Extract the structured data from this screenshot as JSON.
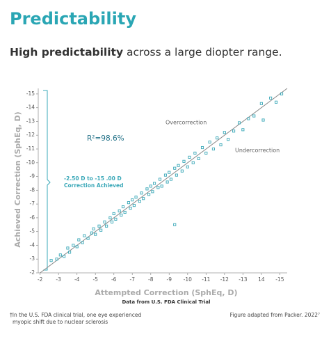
{
  "chart_data": {
    "type": "scatter",
    "title": "Predictability",
    "subtitle_bold": "High predictability",
    "subtitle": "across a large diopter range.",
    "annotation_r2": "R²=98.6%",
    "annotation_over": "Overcorrection",
    "annotation_under": "Undercorrection",
    "bracket_label": [
      "-2.50 D to -15 .00 D",
      "Correction Achieved"
    ],
    "x_label": "Attempted Correction (SphEq, D)",
    "source": "Data from U.S. FDA Clinical Trial",
    "y_label": "Achieved Correction (SphEq, D)",
    "footnote": [
      "†In the U.S. FDA clinical trial, one eye experienced",
      "myopic shift due to nuclear sclerosis"
    ],
    "credit": "Figure adapted from Packer. 2022⁷",
    "color": "#3aa8b8",
    "x": [
      -2.6,
      -2.9,
      -3.1,
      -3.3,
      -3.5,
      -3.6,
      -3.8,
      -4.0,
      -4.1,
      -4.3,
      -4.4,
      -4.6,
      -4.8,
      -4.9,
      -5.0,
      -5.2,
      -5.3,
      -5.5,
      -5.6,
      -5.8,
      -5.9,
      -6.0,
      -6.1,
      -6.3,
      -6.4,
      -6.5,
      -6.6,
      -6.8,
      -6.9,
      -7.0,
      -7.1,
      -7.2,
      -7.4,
      -7.5,
      -7.6,
      -7.8,
      -7.9,
      -8.0,
      -8.1,
      -8.2,
      -8.4,
      -8.5,
      -8.6,
      -8.8,
      -8.9,
      -9.0,
      -9.1,
      -9.3,
      -9.4,
      -9.5,
      -9.7,
      -9.8,
      -10.0,
      -10.1,
      -10.3,
      -10.4,
      -10.6,
      -10.8,
      -11.0,
      -11.2,
      -11.4,
      -11.6,
      -11.8,
      -12.0,
      -12.2,
      -12.5,
      -12.8,
      -13.0,
      -13.3,
      -13.6,
      -14.0,
      -14.1,
      -14.5,
      -14.8,
      -15.1,
      -9.3
    ],
    "values": [
      -2.9,
      -3.0,
      -3.3,
      -3.2,
      -3.8,
      -3.5,
      -4.0,
      -3.9,
      -4.4,
      -4.2,
      -4.7,
      -4.5,
      -4.9,
      -5.2,
      -4.8,
      -5.4,
      -5.1,
      -5.7,
      -5.4,
      -6.0,
      -5.7,
      -6.3,
      -5.9,
      -6.5,
      -6.2,
      -6.8,
      -6.4,
      -7.1,
      -6.7,
      -7.3,
      -6.9,
      -7.5,
      -7.2,
      -7.8,
      -7.4,
      -8.1,
      -7.7,
      -8.3,
      -7.9,
      -8.5,
      -8.2,
      -8.8,
      -8.3,
      -9.1,
      -8.6,
      -9.3,
      -8.8,
      -9.6,
      -9.1,
      -9.8,
      -9.4,
      -10.1,
      -9.7,
      -10.4,
      -10.0,
      -10.7,
      -10.3,
      -11.1,
      -10.7,
      -11.5,
      -11.0,
      -11.8,
      -11.3,
      -12.2,
      -11.7,
      -12.3,
      -12.9,
      -12.4,
      -13.2,
      -13.4,
      -14.3,
      -13.1,
      -14.7,
      -14.4,
      -15.0,
      -5.5
    ],
    "xlim": [
      -1.9,
      -15.4
    ],
    "ylim": [
      -2,
      -15.4
    ],
    "xticks": [
      -2,
      -3,
      -4,
      -5,
      -6,
      -7,
      -8,
      -9,
      -10,
      -11,
      -12,
      -13,
      {
        "value": -14,
        "label": "14"
      },
      -15
    ],
    "yticks": [
      -2,
      -3,
      -4,
      -5,
      -6,
      -7,
      -8,
      -9,
      -10,
      -11,
      -12,
      -13,
      -14,
      -15
    ]
  }
}
